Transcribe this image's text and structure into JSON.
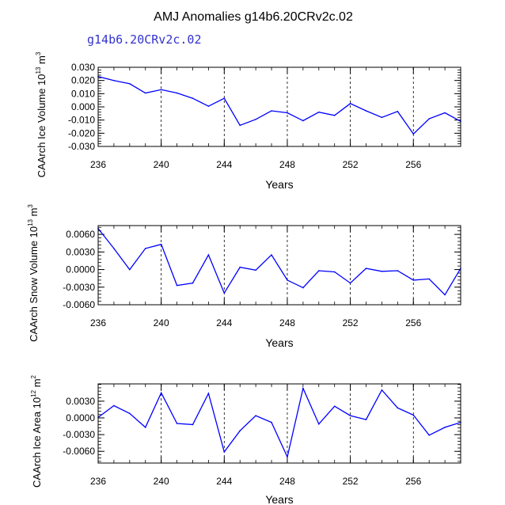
{
  "title": "AMJ Anomalies g14b6.20CRv2c.02",
  "subtitle": "g14b6.20CRv2c.02",
  "colors": {
    "line": "#0000ff",
    "subtitle": "#3333cc",
    "axis": "#000000",
    "grid": "#000000"
  },
  "chart_data": [
    {
      "type": "line",
      "ylabel_main": "CAArch Ice Volume 10",
      "ylabel_exp": "13",
      "ylabel_unit": " m",
      "ylabel_unit_exp": "3",
      "xlabel": "Years",
      "xlim": [
        236,
        259
      ],
      "ylim": [
        -0.03,
        0.03
      ],
      "xticks": [
        "236",
        "240",
        "244",
        "248",
        "252",
        "256"
      ],
      "xtick_values": [
        236,
        240,
        244,
        248,
        252,
        256
      ],
      "yticks": [
        "0.030",
        "0.020",
        "0.010",
        "0.000",
        "-0.010",
        "-0.020",
        "-0.030"
      ],
      "ytick_values": [
        0.03,
        0.02,
        0.01,
        0.0,
        -0.01,
        -0.02,
        -0.03
      ],
      "grid_x": [
        240,
        244,
        248,
        252,
        256
      ],
      "x": [
        236,
        237,
        238,
        239,
        240,
        241,
        242,
        243,
        244,
        245,
        246,
        247,
        248,
        249,
        250,
        251,
        252,
        253,
        254,
        255,
        256,
        257,
        258,
        259
      ],
      "values": [
        0.023,
        0.02,
        0.0175,
        0.0105,
        0.013,
        0.0105,
        0.0065,
        0.0005,
        0.0065,
        -0.014,
        -0.0095,
        -0.003,
        -0.0045,
        -0.0105,
        -0.004,
        -0.0065,
        0.0025,
        -0.003,
        -0.008,
        -0.0035,
        -0.0205,
        -0.009,
        -0.0045,
        -0.011
      ]
    },
    {
      "type": "line",
      "ylabel_main": "CAArch Snow Volume 10",
      "ylabel_exp": "13",
      "ylabel_unit": " m",
      "ylabel_unit_exp": "3",
      "xlabel": "Years",
      "xlim": [
        236,
        259
      ],
      "ylim": [
        -0.006,
        0.0075
      ],
      "xticks": [
        "236",
        "240",
        "244",
        "248",
        "252",
        "256"
      ],
      "xtick_values": [
        236,
        240,
        244,
        248,
        252,
        256
      ],
      "yticks": [
        "0.0060",
        "0.0030",
        "0.0000",
        "-0.0030",
        "-0.0060"
      ],
      "ytick_values": [
        0.006,
        0.003,
        0.0,
        -0.003,
        -0.006
      ],
      "grid_x": [
        240,
        244,
        248,
        252,
        256
      ],
      "x": [
        236,
        237,
        238,
        239,
        240,
        241,
        242,
        243,
        244,
        245,
        246,
        247,
        248,
        249,
        250,
        251,
        252,
        253,
        254,
        255,
        256,
        257,
        258,
        259
      ],
      "values": [
        0.007,
        0.0036,
        0.0,
        0.0036,
        0.0043,
        -0.0027,
        -0.0023,
        0.0025,
        -0.004,
        0.0004,
        -0.0001,
        0.0025,
        -0.0018,
        -0.0031,
        -0.0002,
        -0.0004,
        -0.0023,
        0.0002,
        -0.0003,
        -0.0002,
        -0.0018,
        -0.0016,
        -0.0043,
        0.0002
      ]
    },
    {
      "type": "line",
      "ylabel_main": "CAArch Ice Area 10",
      "ylabel_exp": "12",
      "ylabel_unit": " m",
      "ylabel_unit_exp": "2",
      "xlabel": "Years",
      "xlim": [
        236,
        259
      ],
      "ylim": [
        -0.0081,
        0.0061
      ],
      "xticks": [
        "236",
        "240",
        "244",
        "248",
        "252",
        "256"
      ],
      "xtick_values": [
        236,
        240,
        244,
        248,
        252,
        256
      ],
      "yticks": [
        "0.0030",
        "0.0000",
        "-0.0030",
        "-0.0060"
      ],
      "ytick_values": [
        0.003,
        0.0,
        -0.003,
        -0.006
      ],
      "grid_x": [
        240,
        244,
        248,
        252,
        256
      ],
      "x": [
        236,
        237,
        238,
        239,
        240,
        241,
        242,
        243,
        244,
        245,
        246,
        247,
        248,
        249,
        250,
        251,
        252,
        253,
        254,
        255,
        256,
        257,
        258,
        259
      ],
      "values": [
        0.0001,
        0.0022,
        0.0008,
        -0.0017,
        0.0045,
        -0.001,
        -0.0012,
        0.0044,
        -0.0061,
        -0.0023,
        0.0004,
        -0.0008,
        -0.007,
        0.0053,
        -0.0011,
        0.0021,
        0.0004,
        -0.0003,
        0.005,
        0.0018,
        0.0005,
        -0.0031,
        -0.0017,
        -0.0008
      ]
    }
  ]
}
